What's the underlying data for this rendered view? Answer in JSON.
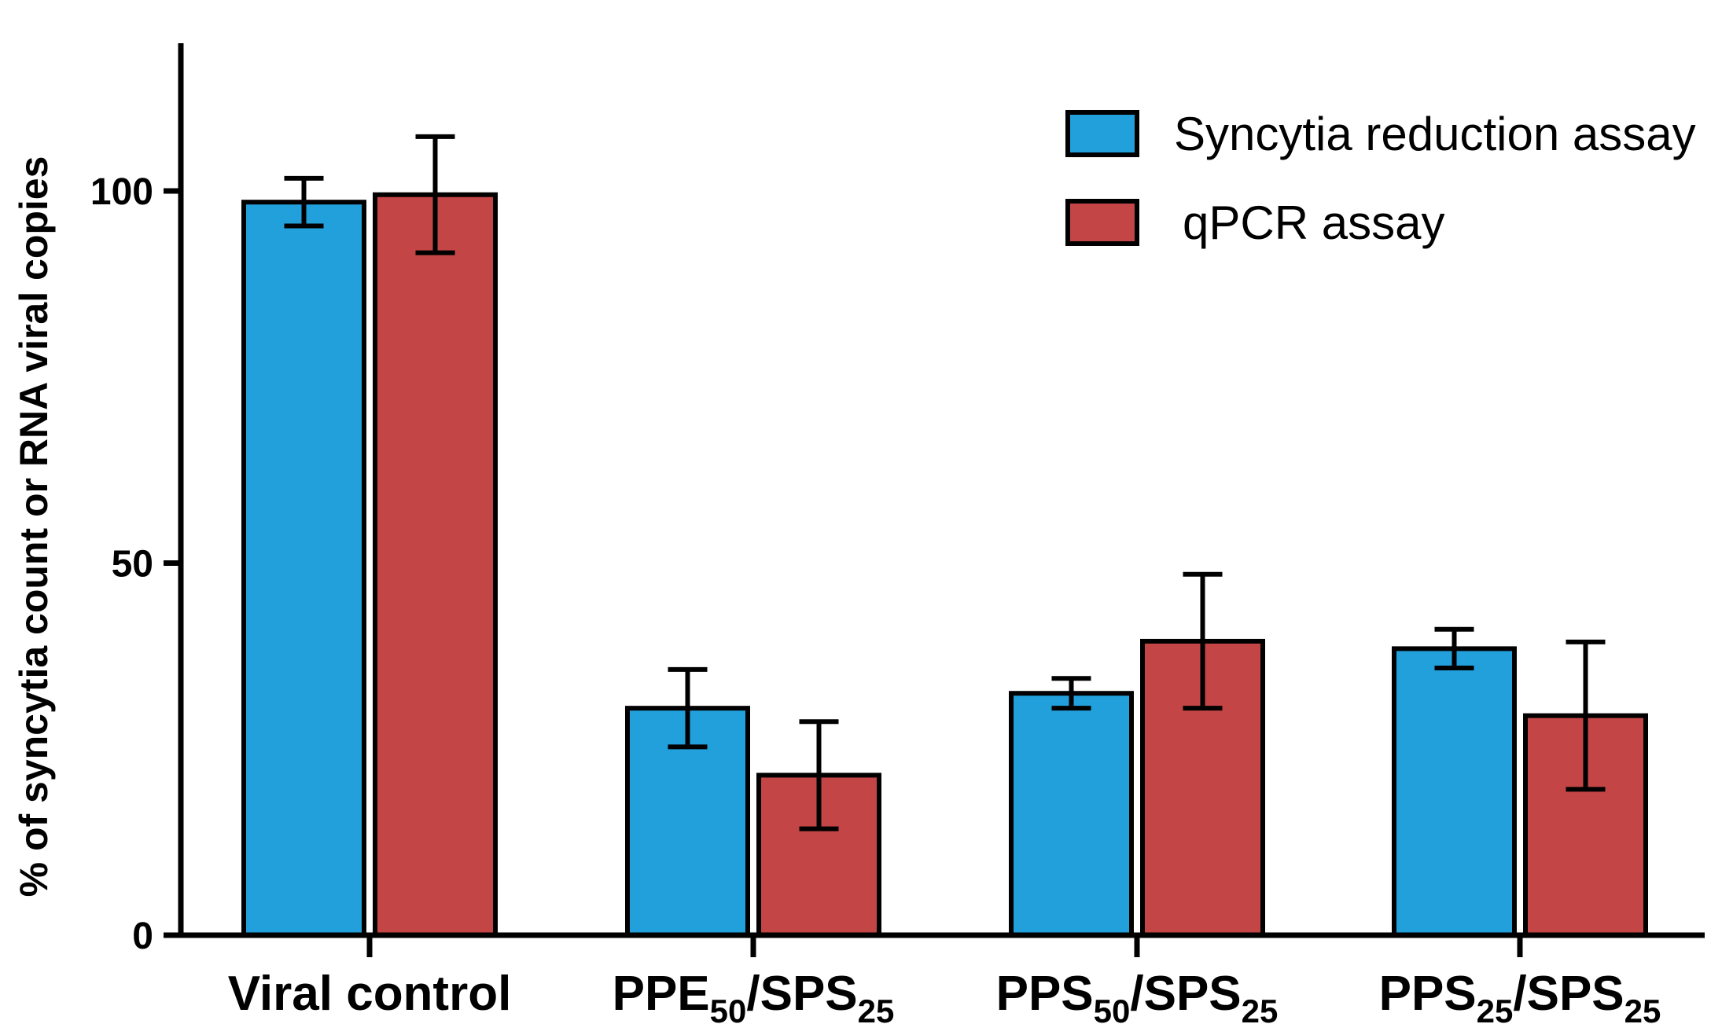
{
  "chart_data": {
    "type": "bar",
    "title": "",
    "xlabel": "",
    "ylabel": "% of syncytia count or RNA viral copies",
    "ylim": [
      0,
      120
    ],
    "yticks": [
      0,
      50,
      100
    ],
    "grid": false,
    "legend_position": "top-right",
    "categories": [
      {
        "main": "Viral control",
        "parts": []
      },
      {
        "main": "",
        "parts": [
          {
            "text": "PPE",
            "sub": "50"
          },
          {
            "text": "/SPS",
            "sub": "25"
          }
        ]
      },
      {
        "main": "",
        "parts": [
          {
            "text": "PPS",
            "sub": "50"
          },
          {
            "text": "/SPS",
            "sub": "25"
          }
        ]
      },
      {
        "main": "",
        "parts": [
          {
            "text": "PPS",
            "sub": "25"
          },
          {
            "text": "/SPS",
            "sub": "25"
          }
        ]
      }
    ],
    "series": [
      {
        "name": "Syncytia reduction assay",
        "color": "#22a0db",
        "values": [
          98.5,
          30.5,
          32.5,
          38.5
        ],
        "error": [
          3.2,
          5.2,
          2.0,
          2.6
        ]
      },
      {
        "name": "qPCR assay",
        "color": "#c34545",
        "values": [
          99.5,
          21.5,
          39.5,
          29.5
        ],
        "error": [
          7.8,
          7.2,
          9.0,
          9.9
        ]
      }
    ]
  }
}
